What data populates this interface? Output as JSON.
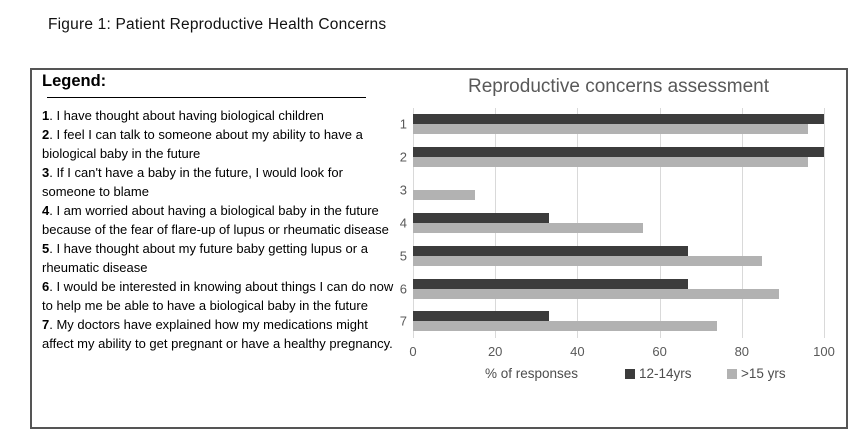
{
  "figure_title": "Figure 1: Patient Reproductive Health Concerns",
  "legend": {
    "heading": "Legend:",
    "items": [
      {
        "num": "1",
        "text": "I have thought about having biological children"
      },
      {
        "num": "2",
        "text": "I feel I can talk to someone about my ability to have a biological baby in the future"
      },
      {
        "num": "3",
        "text": "If I can't have a baby in the future, I would look for someone to blame"
      },
      {
        "num": "4",
        "text": "I am worried about having a biological baby in the future because of the fear of flare-up of lupus or rheumatic disease"
      },
      {
        "num": "5",
        "text": "I have thought about my future baby getting lupus or a rheumatic disease"
      },
      {
        "num": "6",
        "text": "I would be interested in knowing about things I can do now to help me be able to have a biological baby in the future"
      },
      {
        "num": "7",
        "text": "My doctors have explained how my medications might affect my ability to get pregnant or have a healthy pregnancy."
      }
    ]
  },
  "chart_data": {
    "type": "bar",
    "orientation": "horizontal",
    "title": "Reproductive concerns assessment",
    "categories": [
      "1",
      "2",
      "3",
      "4",
      "5",
      "6",
      "7"
    ],
    "series": [
      {
        "name": "12-14yrs",
        "color": "#3c3c3c",
        "values": [
          100,
          100,
          0,
          33,
          67,
          67,
          33
        ]
      },
      {
        "name": ">15 yrs",
        "color": "#b2b2b2",
        "values": [
          96,
          96,
          15,
          56,
          85,
          89,
          74
        ]
      }
    ],
    "xlabel": "% of responses",
    "xlim": [
      0,
      100
    ],
    "xticks": [
      0,
      20,
      40,
      60,
      80,
      100
    ],
    "grid": true,
    "legend_position": "bottom",
    "colors": {
      "gridline": "#d9d9d9",
      "axis_text": "#595959",
      "title_text": "#595959"
    }
  }
}
